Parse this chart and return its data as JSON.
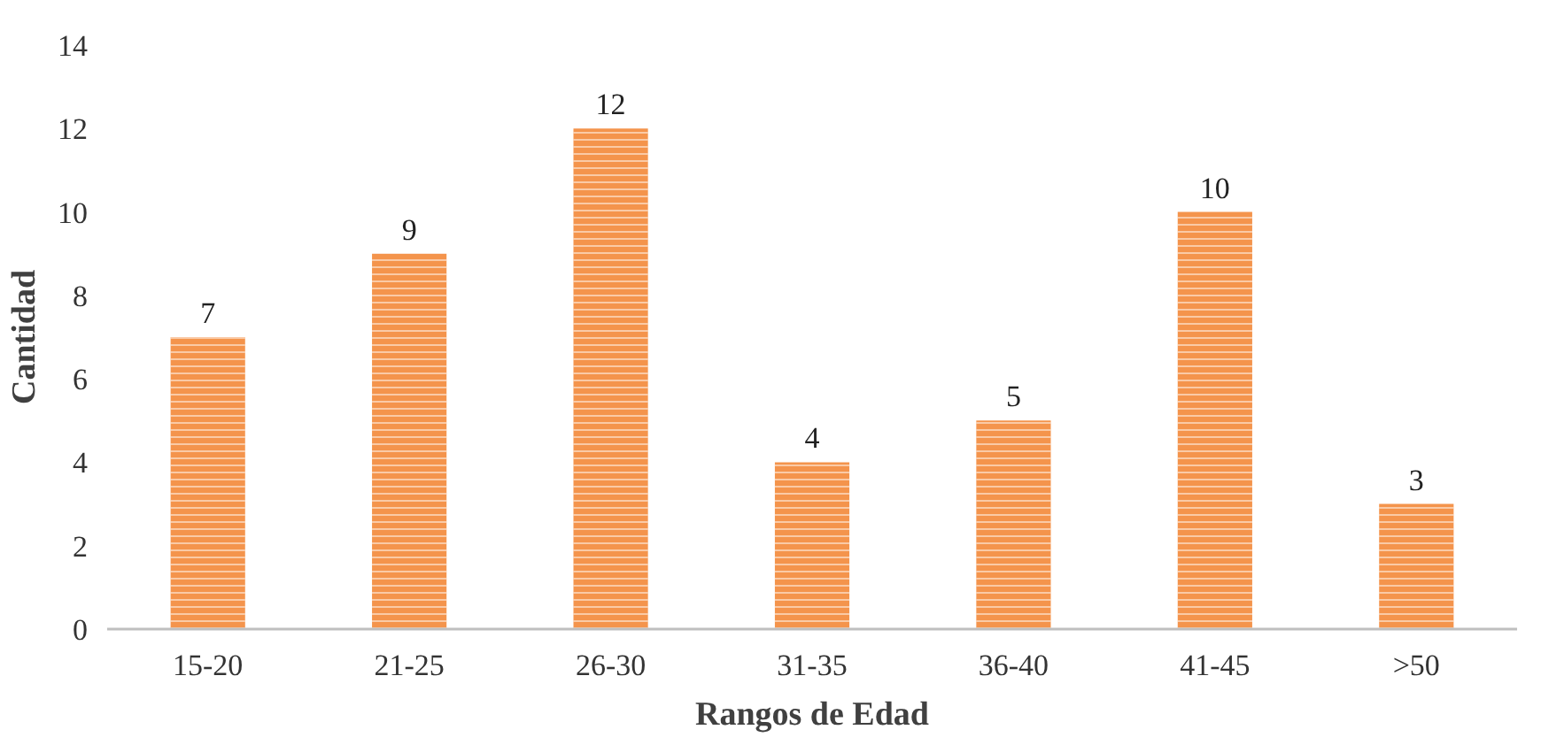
{
  "chart_data": {
    "type": "bar",
    "xlabel": "Rangos de Edad",
    "ylabel": "Cantidad",
    "categories": [
      "15-20",
      "21-25",
      "26-30",
      "31-35",
      "36-40",
      "41-45",
      ">50"
    ],
    "values": [
      7,
      9,
      12,
      4,
      5,
      10,
      3
    ],
    "color": "#f4944c",
    "ylim": [
      0,
      14
    ],
    "yticks": [
      0,
      2,
      4,
      6,
      8,
      10,
      12,
      14
    ],
    "data_labels": true,
    "grid": false
  }
}
